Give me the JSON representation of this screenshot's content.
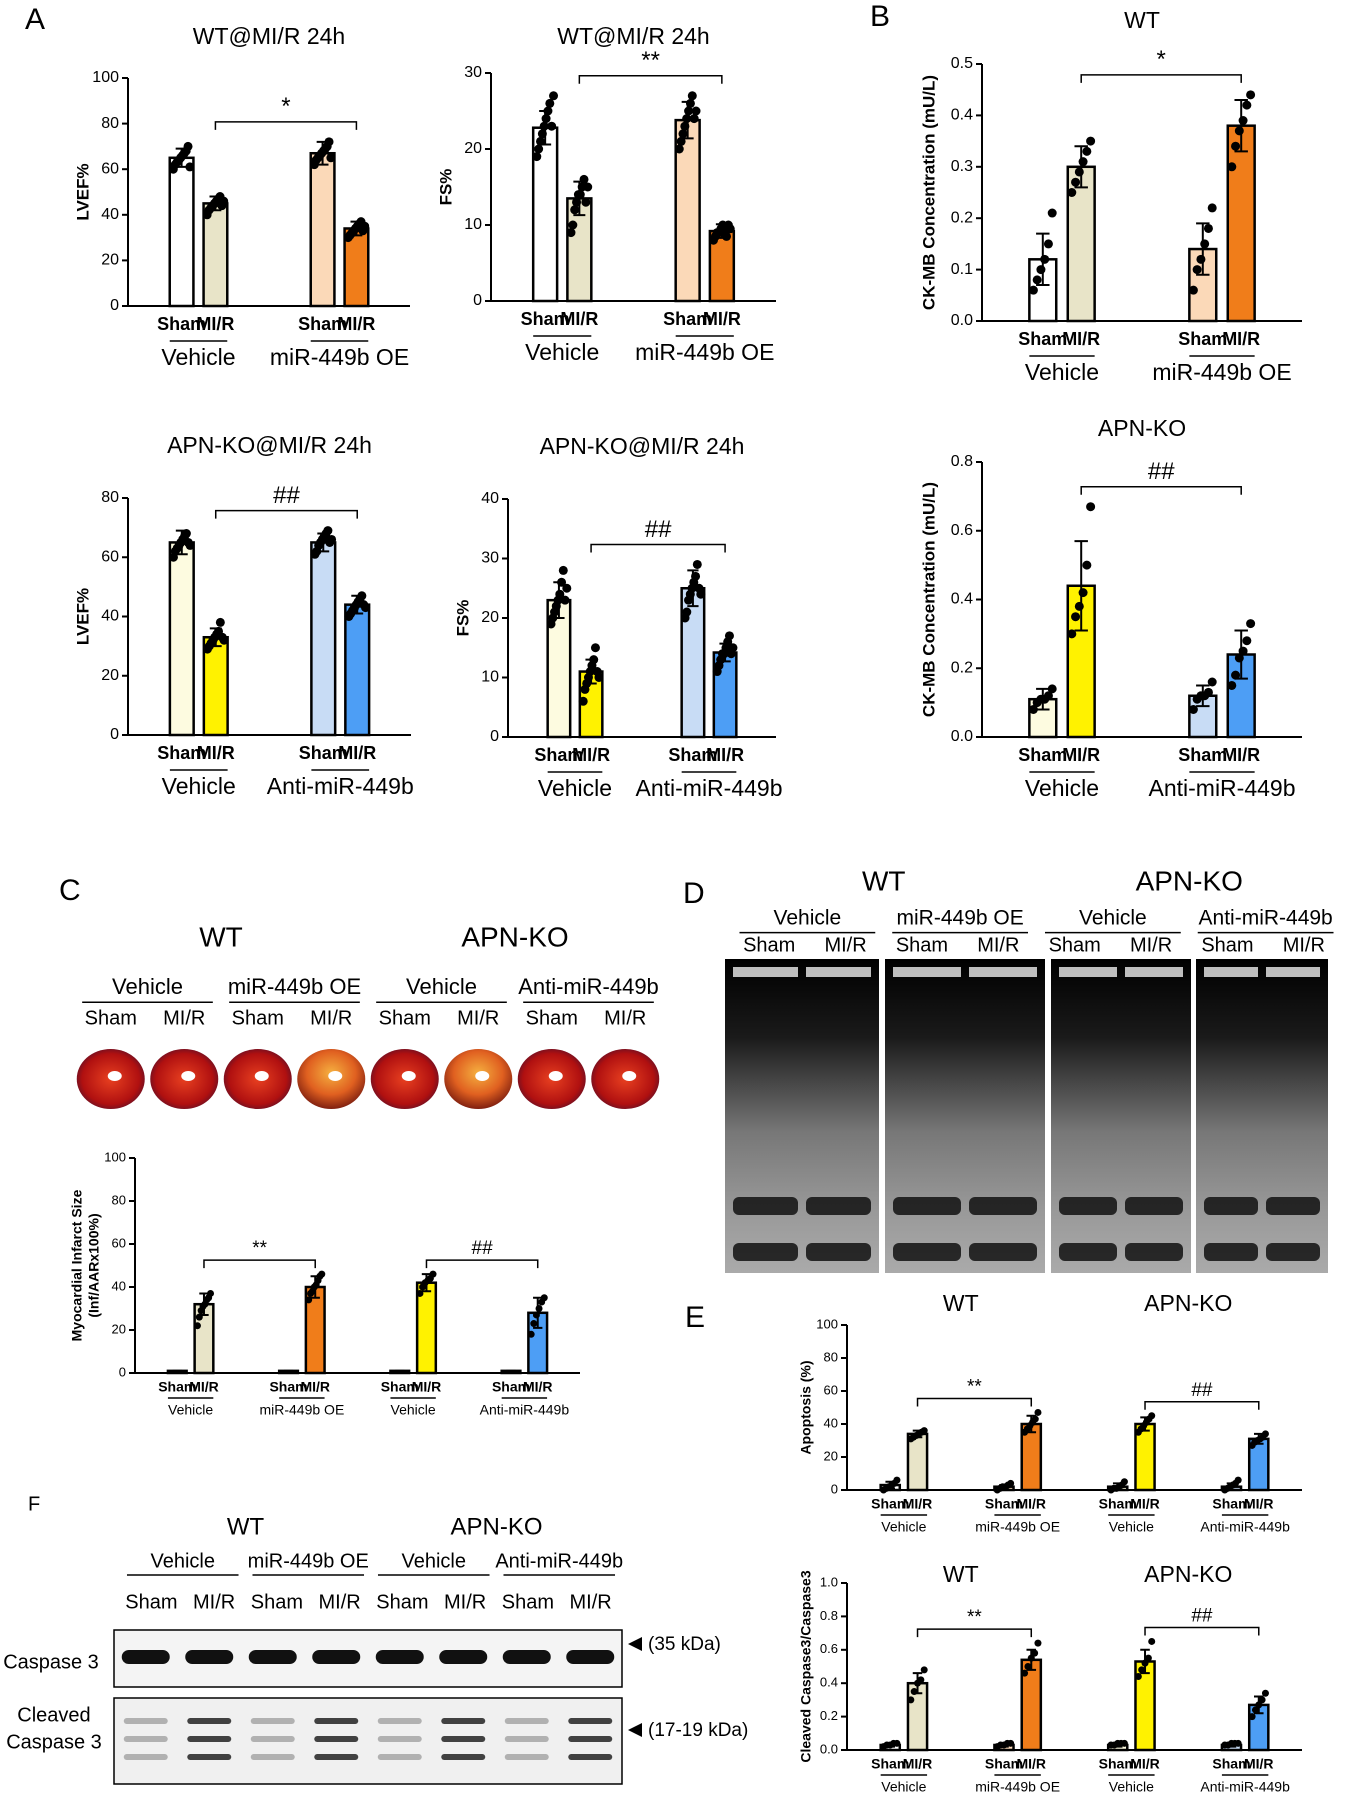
{
  "panels": [
    "A",
    "B",
    "C",
    "D",
    "E",
    "F"
  ],
  "panel_c": {
    "titles": [
      "WT",
      "APN-KO"
    ],
    "groups": [
      "Vehicle",
      "miR-449b OE",
      "Vehicle",
      "Anti-miR-449b"
    ],
    "lanes": [
      "Sham",
      "MI/R",
      "Sham",
      "MI/R",
      "Sham",
      "MI/R",
      "Sham",
      "MI/R"
    ]
  },
  "panel_d": {
    "titles": [
      "WT",
      "APN-KO"
    ],
    "groups": [
      "Vehicle",
      "miR-449b OE",
      "Vehicle",
      "Anti-miR-449b"
    ],
    "lanes": [
      "Sham",
      "MI/R",
      "Sham",
      "MI/R",
      "Sham",
      "MI/R",
      "Sham",
      "MI/R"
    ]
  },
  "panel_f": {
    "titles": [
      "WT",
      "APN-KO"
    ],
    "groups": [
      "Vehicle",
      "miR-449b OE",
      "Vehicle",
      "Anti-miR-449b"
    ],
    "lanes": [
      "Sham",
      "MI/R",
      "Sham",
      "MI/R",
      "Sham",
      "MI/R",
      "Sham",
      "MI/R"
    ],
    "rows": [
      [
        "Caspase 3"
      ],
      [
        "Cleaved",
        "Caspase 3"
      ]
    ],
    "sizes": [
      "(35 kDa)",
      "(17-19 kDa)"
    ]
  },
  "chart_data": [
    {
      "type": "bar",
      "title": "WT@MI/R 24h",
      "ylabel": "LVEF%",
      "categories": [
        "Sham",
        "MI/R",
        "Sham",
        "MI/R"
      ],
      "groups": [
        "Vehicle",
        "miR-449b OE"
      ],
      "values": [
        65,
        45,
        67,
        34
      ],
      "errors": [
        4,
        3,
        5,
        3
      ],
      "points": [
        [
          60,
          62,
          63,
          64,
          65,
          66,
          67,
          68,
          70,
          61
        ],
        [
          40,
          42,
          43,
          44,
          45,
          46,
          47,
          48,
          44,
          46
        ],
        [
          62,
          64,
          65,
          66,
          67,
          68,
          69,
          70,
          72,
          65
        ],
        [
          30,
          31,
          32,
          33,
          34,
          35,
          36,
          37,
          33,
          35
        ]
      ],
      "colors": [
        "#ffffff",
        "#e8e4c8",
        "#fbd9b8",
        "#f07d1a"
      ],
      "ylim": [
        0,
        100
      ],
      "yticks": [
        0,
        20,
        40,
        60,
        80,
        100
      ],
      "annotations": [
        {
          "text": "*",
          "from": 1,
          "to": 3
        }
      ]
    },
    {
      "type": "bar",
      "title": "WT@MI/R 24h",
      "ylabel": "FS%",
      "categories": [
        "Sham",
        "MI/R",
        "Sham",
        "MI/R"
      ],
      "groups": [
        "Vehicle",
        "miR-449b OE"
      ],
      "values": [
        22.8,
        13.5,
        23.8,
        9.2
      ],
      "errors": [
        2.2,
        2.2,
        2.4,
        0.9
      ],
      "points": [
        [
          19,
          20,
          21,
          22,
          23,
          24,
          25,
          26,
          23,
          27
        ],
        [
          9,
          10,
          12,
          13,
          14,
          14,
          15,
          16,
          13,
          15
        ],
        [
          20,
          21,
          22,
          23,
          24,
          25,
          26,
          27,
          24,
          25
        ],
        [
          8,
          8.5,
          9,
          9,
          9.5,
          10,
          9,
          8.5,
          10,
          9.5
        ]
      ],
      "colors": [
        "#ffffff",
        "#e8e4c8",
        "#fbd9b8",
        "#f07d1a"
      ],
      "ylim": [
        0,
        30
      ],
      "yticks": [
        0,
        10,
        20,
        30
      ],
      "annotations": [
        {
          "text": "**",
          "from": 1,
          "to": 3
        }
      ]
    },
    {
      "type": "bar",
      "title": "APN-KO@MI/R 24h",
      "ylabel": "LVEF%",
      "categories": [
        "Sham",
        "MI/R",
        "Sham",
        "MI/R"
      ],
      "groups": [
        "Vehicle",
        "Anti-miR-449b"
      ],
      "values": [
        65,
        33,
        65,
        44
      ],
      "errors": [
        4,
        3,
        3,
        3
      ],
      "points": [
        [
          60,
          62,
          63,
          64,
          65,
          66,
          67,
          68,
          65,
          64
        ],
        [
          29,
          30,
          31,
          32,
          33,
          34,
          35,
          38,
          33,
          32
        ],
        [
          61,
          62,
          64,
          65,
          66,
          67,
          68,
          69,
          65,
          66
        ],
        [
          40,
          41,
          42,
          43,
          44,
          45,
          46,
          47,
          44,
          43
        ]
      ],
      "colors": [
        "#fdfbe0",
        "#fff200",
        "#c8dcf5",
        "#4d9ef5"
      ],
      "ylim": [
        0,
        80
      ],
      "yticks": [
        0,
        20,
        40,
        60,
        80
      ],
      "annotations": [
        {
          "text": "##",
          "from": 1,
          "to": 3
        }
      ]
    },
    {
      "type": "bar",
      "title": "APN-KO@MI/R 24h",
      "ylabel": "FS%",
      "categories": [
        "Sham",
        "MI/R",
        "Sham",
        "MI/R"
      ],
      "groups": [
        "Vehicle",
        "Anti-miR-449b"
      ],
      "values": [
        23,
        11,
        25,
        14.2
      ],
      "errors": [
        3,
        2,
        3,
        1.5
      ],
      "points": [
        [
          19,
          20,
          21,
          22,
          23,
          24,
          26,
          28,
          23,
          25
        ],
        [
          6,
          8,
          9,
          10,
          11,
          12,
          13,
          15,
          11,
          10
        ],
        [
          20,
          21,
          23,
          24,
          25,
          26,
          27,
          29,
          25,
          24
        ],
        [
          11,
          12,
          13,
          14,
          14,
          15,
          16,
          17,
          14,
          15
        ]
      ],
      "colors": [
        "#fdfbe0",
        "#fff200",
        "#c8dcf5",
        "#4d9ef5"
      ],
      "ylim": [
        0,
        40
      ],
      "yticks": [
        0,
        10,
        20,
        30,
        40
      ],
      "annotations": [
        {
          "text": "##",
          "from": 1,
          "to": 3
        }
      ]
    },
    {
      "type": "bar",
      "title": "WT",
      "ylabel": "CK-MB Concentration (mU/L)",
      "categories": [
        "Sham",
        "MI/R",
        "Sham",
        "MI/R"
      ],
      "groups": [
        "Vehicle",
        "miR-449b OE"
      ],
      "values": [
        0.12,
        0.3,
        0.14,
        0.38
      ],
      "errors": [
        0.05,
        0.04,
        0.05,
        0.05
      ],
      "points": [
        [
          0.06,
          0.08,
          0.1,
          0.12,
          0.15,
          0.21
        ],
        [
          0.25,
          0.27,
          0.29,
          0.31,
          0.33,
          0.35
        ],
        [
          0.06,
          0.1,
          0.12,
          0.15,
          0.18,
          0.22
        ],
        [
          0.3,
          0.34,
          0.37,
          0.39,
          0.42,
          0.44
        ]
      ],
      "colors": [
        "#ffffff",
        "#e8e4c8",
        "#fbd9b8",
        "#f07d1a"
      ],
      "ylim": [
        0,
        0.5
      ],
      "yticks": [
        {
          "value": 0,
          "label": "0.0"
        },
        0.1,
        0.2,
        0.3,
        0.4,
        0.5
      ],
      "annotations": [
        {
          "text": "*",
          "from": 1,
          "to": 3
        }
      ]
    },
    {
      "type": "bar",
      "title": "APN-KO",
      "ylabel": "CK-MB Concentration (mU/L)",
      "categories": [
        "Sham",
        "MI/R",
        "Sham",
        "MI/R"
      ],
      "groups": [
        "Vehicle",
        "Anti-miR-449b"
      ],
      "values": [
        0.11,
        0.44,
        0.12,
        0.24
      ],
      "errors": [
        0.03,
        0.13,
        0.03,
        0.07
      ],
      "points": [
        [
          0.08,
          0.1,
          0.11,
          0.11,
          0.12,
          0.14
        ],
        [
          0.3,
          0.35,
          0.38,
          0.42,
          0.5,
          0.67
        ],
        [
          0.08,
          0.11,
          0.12,
          0.12,
          0.13,
          0.16
        ],
        [
          0.15,
          0.18,
          0.23,
          0.25,
          0.28,
          0.33
        ]
      ],
      "colors": [
        "#fdfbe0",
        "#fff200",
        "#c8dcf5",
        "#4d9ef5"
      ],
      "ylim": [
        0,
        0.8
      ],
      "yticks": [
        {
          "value": 0,
          "label": "0.0"
        },
        0.2,
        0.4,
        0.6,
        0.8
      ],
      "annotations": [
        {
          "text": "##",
          "from": 1,
          "to": 3
        }
      ]
    },
    {
      "type": "bar",
      "ylabel": [
        "Myocardial Infarct Size",
        "(Inf/AARx100%)"
      ],
      "categories": [
        "Sham",
        "MI/R",
        "Sham",
        "MI/R",
        "Sham",
        "MI/R",
        "Sham",
        "MI/R"
      ],
      "groups": [
        "Vehicle",
        "miR-449b OE",
        "Vehicle",
        "Anti-miR-449b"
      ],
      "values": [
        1,
        32,
        1,
        40,
        1,
        42,
        1,
        28
      ],
      "errors": [
        0,
        5,
        0,
        5,
        0,
        4,
        0,
        7
      ],
      "points": [
        [],
        [
          22,
          26,
          29,
          31,
          32,
          34,
          35,
          37
        ],
        [],
        [
          34,
          37,
          38,
          40,
          41,
          43,
          45,
          46
        ],
        [],
        [
          37,
          40,
          42,
          43,
          44,
          46
        ],
        [],
        [
          18,
          23,
          27,
          30,
          33,
          35
        ]
      ],
      "colors": [
        "#ffffff",
        "#e8e4c8",
        "#fbd9b8",
        "#f07d1a",
        "#fdfbe0",
        "#fff200",
        "#c8dcf5",
        "#4d9ef5"
      ],
      "ylim": [
        0,
        100
      ],
      "yticks": [
        0,
        20,
        40,
        60,
        80,
        100
      ],
      "annotations": [
        {
          "text": "**",
          "from": 1,
          "to": 3
        },
        {
          "text": "##",
          "from": 5,
          "to": 7
        }
      ]
    },
    {
      "type": "bar",
      "group_titles": [
        "WT",
        "APN-KO"
      ],
      "ylabel": "Apoptosis (%)",
      "categories": [
        "Sham",
        "MI/R",
        "Sham",
        "MI/R",
        "Sham",
        "MI/R",
        "Sham",
        "MI/R"
      ],
      "groups": [
        "Vehicle",
        "miR-449b OE",
        "Vehicle",
        "Anti-miR-449b"
      ],
      "values": [
        3,
        34,
        2,
        40,
        2,
        40,
        2,
        31
      ],
      "errors": [
        2,
        2,
        1,
        5,
        2,
        4,
        2,
        3
      ],
      "points": [
        [
          0,
          1,
          2,
          3,
          4,
          6
        ],
        [
          31,
          32,
          33,
          34,
          35,
          36
        ],
        [
          0,
          1,
          2,
          2,
          3,
          4
        ],
        [
          35,
          37,
          39,
          41,
          43,
          47
        ],
        [
          0,
          1,
          1,
          2,
          3,
          5
        ],
        [
          35,
          37,
          39,
          41,
          43,
          45
        ],
        [
          0,
          1,
          2,
          3,
          4,
          6
        ],
        [
          27,
          29,
          30,
          31,
          32,
          34
        ]
      ],
      "colors": [
        "#ffffff",
        "#e8e4c8",
        "#fbd9b8",
        "#f07d1a",
        "#fdfbe0",
        "#fff200",
        "#c8dcf5",
        "#4d9ef5"
      ],
      "ylim": [
        0,
        100
      ],
      "yticks": [
        0,
        20,
        40,
        60,
        80,
        100
      ],
      "annotations": [
        {
          "text": "**",
          "from": 1,
          "to": 3
        },
        {
          "text": "##",
          "from": 5,
          "to": 7
        }
      ]
    },
    {
      "type": "bar",
      "group_titles": [
        "WT",
        "APN-KO"
      ],
      "ylabel": "Cleaved Caspase3/Caspase3",
      "categories": [
        "Sham",
        "MI/R",
        "Sham",
        "MI/R",
        "Sham",
        "MI/R",
        "Sham",
        "MI/R"
      ],
      "groups": [
        "Vehicle",
        "miR-449b OE",
        "Vehicle",
        "Anti-miR-449b"
      ],
      "values": [
        0.03,
        0.4,
        0.03,
        0.54,
        0.03,
        0.53,
        0.03,
        0.27
      ],
      "errors": [
        0.01,
        0.06,
        0.01,
        0.06,
        0.01,
        0.07,
        0.01,
        0.05
      ],
      "points": [
        [
          0.02,
          0.03,
          0.03,
          0.04,
          0.04
        ],
        [
          0.3,
          0.35,
          0.4,
          0.42,
          0.48
        ],
        [
          0.02,
          0.03,
          0.03,
          0.04,
          0.04
        ],
        [
          0.46,
          0.5,
          0.55,
          0.58,
          0.64
        ],
        [
          0.03,
          0.03,
          0.04,
          0.04,
          0.04
        ],
        [
          0.44,
          0.48,
          0.52,
          0.55,
          0.65
        ],
        [
          0.03,
          0.03,
          0.04,
          0.04,
          0.04
        ],
        [
          0.2,
          0.24,
          0.27,
          0.3,
          0.34
        ]
      ],
      "colors": [
        "#ffffff",
        "#e8e4c8",
        "#fbd9b8",
        "#f07d1a",
        "#fdfbe0",
        "#fff200",
        "#c8dcf5",
        "#4d9ef5"
      ],
      "ylim": [
        0,
        1
      ],
      "yticks": [
        {
          "value": 0,
          "label": "0.0"
        },
        0.2,
        0.4,
        0.6,
        0.8,
        {
          "value": 1,
          "label": "1.0"
        }
      ],
      "annotations": [
        {
          "text": "**",
          "from": 1,
          "to": 3
        },
        {
          "text": "##",
          "from": 5,
          "to": 7
        }
      ]
    }
  ]
}
